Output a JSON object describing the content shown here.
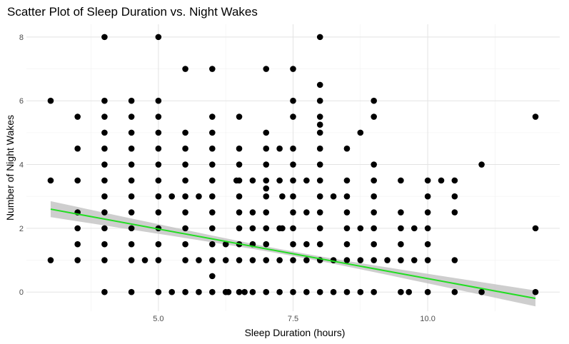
{
  "chart_data": {
    "type": "scatter",
    "title": "Scatter Plot of Sleep Duration vs. Night Wakes",
    "xlabel": "Sleep Duration (hours)",
    "ylabel": "Number of Night Wakes",
    "xlim": [
      2.55,
      12.45
    ],
    "ylim": [
      -0.6,
      8.4
    ],
    "x_ticks": [
      5.0,
      7.5,
      10.0
    ],
    "x_tick_labels": [
      "5.0",
      "7.5",
      "10.0"
    ],
    "x_minor_gridlines": [
      3.75,
      6.25,
      8.75,
      11.25
    ],
    "y_ticks": [
      0,
      2,
      4,
      6,
      8
    ],
    "y_tick_labels": [
      "0",
      "2",
      "4",
      "6",
      "8"
    ],
    "y_minor_gridlines": [
      1,
      3,
      5,
      7
    ],
    "grid": true,
    "point_color": "#000000",
    "trend_line": {
      "method": "linear",
      "color": "#22dd22",
      "band_color": "#bebebe",
      "x": [
        3.0,
        12.0
      ],
      "y": [
        2.6,
        -0.2
      ],
      "band_halfwidth_ends": 0.25,
      "band_halfwidth_mid": 0.07
    },
    "points": [
      [
        3,
        6
      ],
      [
        3,
        3.5
      ],
      [
        3,
        1
      ],
      [
        3.5,
        5.5
      ],
      [
        3.5,
        4.5
      ],
      [
        3.5,
        3.5
      ],
      [
        3.5,
        2.5
      ],
      [
        3.5,
        2
      ],
      [
        3.5,
        1.5
      ],
      [
        3.5,
        1
      ],
      [
        4,
        8
      ],
      [
        4,
        6
      ],
      [
        4,
        5.5
      ],
      [
        4,
        5
      ],
      [
        4,
        4.5
      ],
      [
        4,
        4
      ],
      [
        4,
        3.5
      ],
      [
        4,
        3
      ],
      [
        4,
        2.5
      ],
      [
        4,
        2
      ],
      [
        4,
        1.5
      ],
      [
        4,
        1
      ],
      [
        4,
        0
      ],
      [
        4.5,
        6
      ],
      [
        4.5,
        5.5
      ],
      [
        4.5,
        5
      ],
      [
        4.5,
        4.5
      ],
      [
        4.5,
        4
      ],
      [
        4.5,
        3.5
      ],
      [
        4.5,
        3
      ],
      [
        4.5,
        2.5
      ],
      [
        4.5,
        2
      ],
      [
        4.5,
        1.5
      ],
      [
        4.5,
        1
      ],
      [
        4.5,
        0
      ],
      [
        4.75,
        1
      ],
      [
        5,
        8
      ],
      [
        5,
        6
      ],
      [
        5,
        5.5
      ],
      [
        5,
        5
      ],
      [
        5,
        4.5
      ],
      [
        5,
        4
      ],
      [
        5,
        3.5
      ],
      [
        5,
        3
      ],
      [
        5,
        2.5
      ],
      [
        5,
        2
      ],
      [
        5,
        1.5
      ],
      [
        5,
        1
      ],
      [
        5,
        0
      ],
      [
        5.25,
        3
      ],
      [
        5.25,
        0
      ],
      [
        5.5,
        7
      ],
      [
        5.5,
        5
      ],
      [
        5.5,
        4.5
      ],
      [
        5.5,
        4
      ],
      [
        5.5,
        3.5
      ],
      [
        5.5,
        3
      ],
      [
        5.5,
        2.5
      ],
      [
        5.5,
        2
      ],
      [
        5.5,
        1.5
      ],
      [
        5.5,
        1
      ],
      [
        5.5,
        0
      ],
      [
        5.75,
        3
      ],
      [
        5.75,
        1
      ],
      [
        5.75,
        0
      ],
      [
        6,
        7
      ],
      [
        6,
        5.5
      ],
      [
        6,
        5
      ],
      [
        6,
        4.5
      ],
      [
        6,
        4
      ],
      [
        6,
        3.5
      ],
      [
        6,
        3
      ],
      [
        6,
        2.5
      ],
      [
        6,
        2
      ],
      [
        6,
        1.5
      ],
      [
        6,
        1
      ],
      [
        6,
        0.5
      ],
      [
        6,
        0
      ],
      [
        6.25,
        1.5
      ],
      [
        6.25,
        1
      ],
      [
        6.25,
        0
      ],
      [
        6.3,
        0
      ],
      [
        6.5,
        5.5
      ],
      [
        6.5,
        4.5
      ],
      [
        6.5,
        4
      ],
      [
        6.5,
        3.5
      ],
      [
        6.5,
        3
      ],
      [
        6.5,
        2.5
      ],
      [
        6.5,
        2
      ],
      [
        6.5,
        1.5
      ],
      [
        6.5,
        1
      ],
      [
        6.5,
        0
      ],
      [
        6.45,
        3.5
      ],
      [
        6.6,
        0
      ],
      [
        6.75,
        3.5
      ],
      [
        6.75,
        2.5
      ],
      [
        6.75,
        2
      ],
      [
        6.75,
        1.5
      ],
      [
        6.75,
        1
      ],
      [
        6.75,
        0
      ],
      [
        7,
        7
      ],
      [
        7,
        5
      ],
      [
        7,
        4.5
      ],
      [
        7,
        4
      ],
      [
        7,
        3.5
      ],
      [
        7,
        3.25
      ],
      [
        7,
        3
      ],
      [
        7,
        2.5
      ],
      [
        7,
        2
      ],
      [
        7,
        1.5
      ],
      [
        7,
        1
      ],
      [
        7,
        0
      ],
      [
        7.25,
        4.5
      ],
      [
        7.25,
        3.5
      ],
      [
        7.25,
        2
      ],
      [
        7.25,
        1
      ],
      [
        7.25,
        0
      ],
      [
        7.3,
        3
      ],
      [
        7.3,
        2
      ],
      [
        7.5,
        7
      ],
      [
        7.5,
        6
      ],
      [
        7.5,
        5.5
      ],
      [
        7.5,
        4.5
      ],
      [
        7.5,
        4
      ],
      [
        7.5,
        3.5
      ],
      [
        7.5,
        3
      ],
      [
        7.5,
        2.5
      ],
      [
        7.5,
        2
      ],
      [
        7.5,
        1.5
      ],
      [
        7.5,
        1
      ],
      [
        7.5,
        0
      ],
      [
        7.75,
        3.5
      ],
      [
        7.75,
        2.5
      ],
      [
        7.75,
        1.5
      ],
      [
        7.75,
        1
      ],
      [
        7.75,
        0
      ],
      [
        8,
        8
      ],
      [
        8,
        6.5
      ],
      [
        8,
        6
      ],
      [
        8,
        5.5
      ],
      [
        8,
        5.25
      ],
      [
        8,
        5
      ],
      [
        8,
        4.5
      ],
      [
        8,
        4
      ],
      [
        8,
        3.5
      ],
      [
        8,
        3
      ],
      [
        8,
        2.5
      ],
      [
        8,
        2
      ],
      [
        8,
        1.5
      ],
      [
        8,
        1
      ],
      [
        8,
        0
      ],
      [
        8.25,
        3
      ],
      [
        8.25,
        1
      ],
      [
        8.25,
        0
      ],
      [
        8.5,
        4.5
      ],
      [
        8.5,
        3.5
      ],
      [
        8.5,
        3
      ],
      [
        8.5,
        2.5
      ],
      [
        8.5,
        2
      ],
      [
        8.5,
        1.5
      ],
      [
        8.5,
        1
      ],
      [
        8.5,
        0
      ],
      [
        8.75,
        5
      ],
      [
        8.75,
        2
      ],
      [
        8.75,
        1
      ],
      [
        8.75,
        0
      ],
      [
        9,
        6
      ],
      [
        9,
        5.5
      ],
      [
        9,
        4
      ],
      [
        9,
        3.5
      ],
      [
        9,
        3
      ],
      [
        9,
        2.5
      ],
      [
        9,
        2
      ],
      [
        9,
        1.5
      ],
      [
        9,
        1
      ],
      [
        9,
        0
      ],
      [
        9.25,
        1
      ],
      [
        9.5,
        3.5
      ],
      [
        9.5,
        2.5
      ],
      [
        9.5,
        2
      ],
      [
        9.5,
        1.5
      ],
      [
        9.5,
        1
      ],
      [
        9.5,
        0
      ],
      [
        9.65,
        0
      ],
      [
        9.75,
        2
      ],
      [
        9.75,
        1
      ],
      [
        10,
        3.5
      ],
      [
        10,
        3
      ],
      [
        10,
        2.5
      ],
      [
        10,
        2
      ],
      [
        10,
        1.5
      ],
      [
        10,
        1
      ],
      [
        10,
        0
      ],
      [
        10.25,
        3.5
      ],
      [
        10.5,
        3.5
      ],
      [
        10.5,
        3
      ],
      [
        10.5,
        2.5
      ],
      [
        10.5,
        1
      ],
      [
        10.5,
        0
      ],
      [
        11,
        4
      ],
      [
        11,
        0
      ],
      [
        12,
        5.5
      ],
      [
        12,
        2
      ],
      [
        12,
        0
      ]
    ]
  }
}
